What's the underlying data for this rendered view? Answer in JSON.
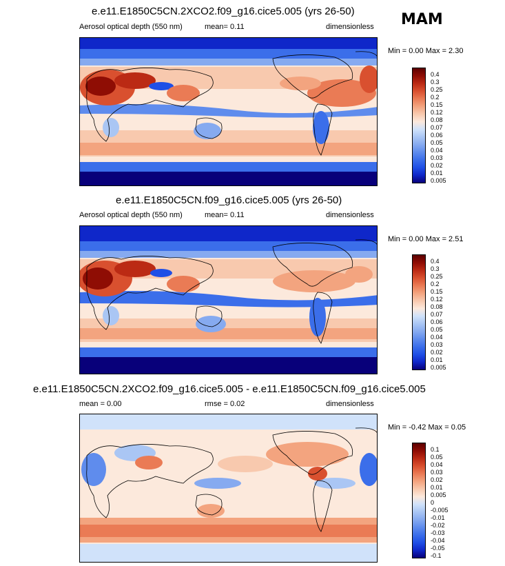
{
  "header": {
    "season": "MAM"
  },
  "panels": [
    {
      "title": "e.e11.E1850C5CN.2XCO2.f09_g16.cice5.005 (yrs 26-50)",
      "left_label": "Aerosol optical depth (550 nm)",
      "center_label": "mean=  0.11",
      "right_label": "dimensionless",
      "minmax": "Min =  0.00 Max =  2.30",
      "colorbar_levels": [
        "0.4",
        "0.3",
        "0.25",
        "0.2",
        "0.15",
        "0.12",
        "0.08",
        "0.07",
        "0.06",
        "0.05",
        "0.04",
        "0.03",
        "0.02",
        "0.01",
        "0.005"
      ]
    },
    {
      "title": "e.e11.E1850C5CN.f09_g16.cice5.005 (yrs 26-50)",
      "left_label": "Aerosol optical depth (550 nm)",
      "center_label": "mean=  0.11",
      "right_label": "dimensionless",
      "minmax": "Min =  0.00 Max =  2.51",
      "colorbar_levels": [
        "0.4",
        "0.3",
        "0.25",
        "0.2",
        "0.15",
        "0.12",
        "0.08",
        "0.07",
        "0.06",
        "0.05",
        "0.04",
        "0.03",
        "0.02",
        "0.01",
        "0.005"
      ]
    },
    {
      "title": "e.e11.E1850C5CN.2XCO2.f09_g16.cice5.005 - e.e11.E1850C5CN.f09_g16.cice5.005",
      "left_label": "mean =  0.00",
      "center_label": "rmse =  0.02",
      "right_label": "dimensionless",
      "minmax": "Min = -0.42 Max =  0.05",
      "colorbar_levels": [
        "0.1",
        "0.05",
        "0.04",
        "0.03",
        "0.02",
        "0.01",
        "0.005",
        "0",
        "-0.005",
        "-0.01",
        "-0.02",
        "-0.03",
        "-0.04",
        "-0.05",
        "-0.1"
      ]
    }
  ],
  "colors": {
    "abs_scale": [
      "#08007a",
      "#0f27c9",
      "#1f4fe6",
      "#3b6eea",
      "#5f8ced",
      "#86aaf0",
      "#aac6f4",
      "#d0e2fa",
      "#fce9dc",
      "#f8c9ae",
      "#f3a47f",
      "#ea7b55",
      "#d9502f",
      "#bb2a14",
      "#8f0d04",
      "#5c0000"
    ],
    "diff_scale": [
      "#08007a",
      "#0f27c9",
      "#1f4fe6",
      "#3b6eea",
      "#5f8ced",
      "#86aaf0",
      "#aac6f4",
      "#d0e2fa",
      "#fce9dc",
      "#f8c9ae",
      "#f3a47f",
      "#ea7b55",
      "#d9502f",
      "#bb2a14",
      "#8f0d04",
      "#5c0000"
    ]
  }
}
